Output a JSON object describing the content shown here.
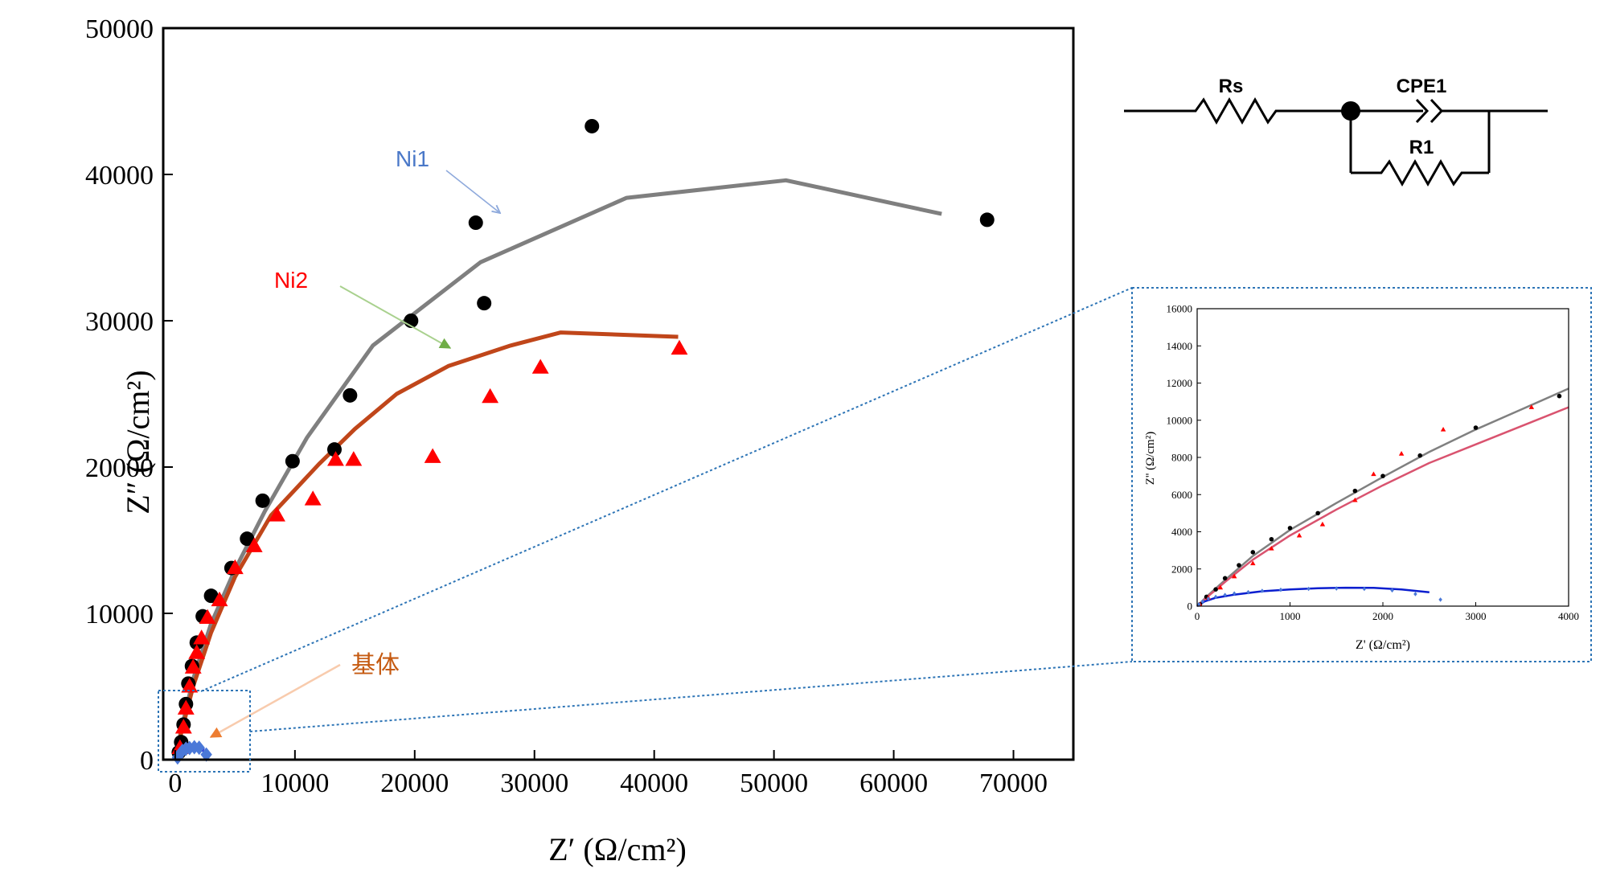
{
  "chart_data": [
    {
      "type": "scatter",
      "title": "",
      "xlabel": "Z′ (Ω/cm²)",
      "ylabel": "Z″ (Ω/cm²)",
      "xlim": [
        -1000,
        75000
      ],
      "ylim": [
        0,
        50000
      ],
      "xticks": [
        0,
        10000,
        20000,
        30000,
        40000,
        50000,
        60000,
        70000
      ],
      "xtick_labels": [
        "0",
        "10000",
        "20000",
        "30000",
        "40000",
        "50000",
        "60000",
        "70000"
      ],
      "yticks": [
        0,
        10000,
        20000,
        30000,
        40000,
        50000
      ],
      "ytick_labels": [
        "0",
        "10000",
        "20000",
        "30000",
        "40000",
        "50000"
      ],
      "series": [
        {
          "name": "Ni1",
          "color": "#000000",
          "marker": "circle",
          "points": [
            [
              300,
              500
            ],
            [
              500,
              1200
            ],
            [
              700,
              2400
            ],
            [
              900,
              3800
            ],
            [
              1100,
              5200
            ],
            [
              1400,
              6400
            ],
            [
              1800,
              8000
            ],
            [
              2300,
              9800
            ],
            [
              3000,
              11200
            ],
            [
              4700,
              13100
            ],
            [
              6000,
              15100
            ],
            [
              7300,
              17700
            ],
            [
              9800,
              20400
            ],
            [
              13300,
              21200
            ],
            [
              14600,
              24900
            ],
            [
              19700,
              30000
            ],
            [
              25100,
              36700
            ],
            [
              25800,
              31200
            ],
            [
              34800,
              43300
            ],
            [
              67800,
              36900
            ]
          ]
        },
        {
          "name": "Ni2",
          "color": "#ff0000",
          "marker": "triangle",
          "points": [
            [
              400,
              800
            ],
            [
              700,
              2200
            ],
            [
              900,
              3500
            ],
            [
              1200,
              5000
            ],
            [
              1500,
              6300
            ],
            [
              1800,
              7300
            ],
            [
              2200,
              8300
            ],
            [
              2700,
              9700
            ],
            [
              3700,
              10900
            ],
            [
              5000,
              13100
            ],
            [
              6600,
              14600
            ],
            [
              8500,
              16700
            ],
            [
              11500,
              17800
            ],
            [
              13400,
              20500
            ],
            [
              14900,
              20500
            ],
            [
              21500,
              20700
            ],
            [
              26300,
              24800
            ],
            [
              30500,
              26800
            ],
            [
              42100,
              28100
            ]
          ]
        },
        {
          "name": "基体",
          "color": "#4a78d8",
          "marker": "diamond",
          "points": [
            [
              200,
              150
            ],
            [
              400,
              400
            ],
            [
              600,
              600
            ],
            [
              900,
              750
            ],
            [
              1200,
              800
            ],
            [
              1600,
              850
            ],
            [
              2000,
              820
            ],
            [
              2600,
              350
            ]
          ]
        }
      ],
      "fit_lines": [
        {
          "name": "Ni1-fit",
          "color": "#7f7f7f",
          "points": [
            [
              0,
              0
            ],
            [
              500,
              2000
            ],
            [
              1500,
              5500
            ],
            [
              3000,
              9300
            ],
            [
              5000,
              13000
            ],
            [
              7500,
              17000
            ],
            [
              11000,
              22000
            ],
            [
              16500,
              28300
            ],
            [
              25500,
              34000
            ],
            [
              37700,
              38400
            ],
            [
              51000,
              39600
            ],
            [
              64000,
              37300
            ]
          ]
        },
        {
          "name": "Ni2-fit",
          "color": "#c0461a",
          "points": [
            [
              0,
              0
            ],
            [
              500,
              1800
            ],
            [
              1500,
              5000
            ],
            [
              3000,
              8700
            ],
            [
              5000,
              12500
            ],
            [
              8000,
              16700
            ],
            [
              12000,
              20200
            ],
            [
              15000,
              22600
            ],
            [
              18500,
              25000
            ],
            [
              22800,
              26900
            ],
            [
              28000,
              28300
            ],
            [
              32200,
              29200
            ],
            [
              42000,
              28900
            ]
          ]
        },
        {
          "name": "基体-fit",
          "color": "#1f1fd8",
          "points": [
            [
              0,
              0
            ],
            [
              150,
              350
            ],
            [
              400,
              600
            ],
            [
              800,
              780
            ],
            [
              1200,
              850
            ],
            [
              1600,
              870
            ],
            [
              2000,
              800
            ],
            [
              2400,
              650
            ]
          ]
        }
      ],
      "annotations": [
        {
          "text": "Ni1",
          "color": "#4a78c8",
          "target": [
            27300,
            37800
          ],
          "arrow_color": "#8faadc"
        },
        {
          "text": "Ni2",
          "color": "#ff0000",
          "target": [
            24000,
            28000
          ],
          "arrow_color": "#70ad47"
        },
        {
          "text": "基体",
          "color": "#c55a11",
          "target": [
            3500,
            1400
          ],
          "arrow_color": "#f4b183"
        }
      ],
      "zoom_region": {
        "x": [
          -500,
          7000
        ],
        "y": [
          -800,
          4600
        ]
      }
    },
    {
      "type": "scatter",
      "title": "",
      "xlabel": "Z' (Ω/cm²)",
      "ylabel": "Z'' (Ω/cm²)",
      "xlim": [
        0,
        4000
      ],
      "ylim": [
        0,
        16000
      ],
      "xticks": [
        0,
        1000,
        2000,
        3000,
        4000
      ],
      "xtick_labels": [
        "0",
        "1000",
        "2000",
        "3000",
        "4000"
      ],
      "yticks": [
        0,
        2000,
        4000,
        6000,
        8000,
        10000,
        12000,
        14000,
        16000
      ],
      "ytick_labels": [
        "0",
        "2000",
        "4000",
        "6000",
        "8000",
        "10000",
        "12000",
        "14000",
        "16000"
      ],
      "series": [
        {
          "name": "Ni1",
          "color": "#000000",
          "marker": "circle",
          "points": [
            [
              30,
              100
            ],
            [
              100,
              500
            ],
            [
              200,
              900
            ],
            [
              300,
              1500
            ],
            [
              450,
              2200
            ],
            [
              600,
              2900
            ],
            [
              800,
              3600
            ],
            [
              1000,
              4200
            ],
            [
              1300,
              5000
            ],
            [
              1700,
              6200
            ],
            [
              2000,
              7000
            ],
            [
              2400,
              8100
            ],
            [
              3000,
              9600
            ],
            [
              3900,
              11300
            ]
          ]
        },
        {
          "name": "Ni2",
          "color": "#ff0000",
          "marker": "triangle",
          "points": [
            [
              30,
              80
            ],
            [
              120,
              450
            ],
            [
              250,
              1000
            ],
            [
              400,
              1600
            ],
            [
              600,
              2300
            ],
            [
              800,
              3100
            ],
            [
              1100,
              3800
            ],
            [
              1350,
              4400
            ],
            [
              1700,
              5700
            ],
            [
              1900,
              7100
            ],
            [
              2200,
              8200
            ],
            [
              2650,
              9500
            ],
            [
              3600,
              10700
            ]
          ]
        },
        {
          "name": "基体",
          "color": "#4a78d8",
          "marker": "diamond",
          "points": [
            [
              20,
              100
            ],
            [
              60,
              250
            ],
            [
              120,
              400
            ],
            [
              200,
              500
            ],
            [
              300,
              600
            ],
            [
              400,
              680
            ],
            [
              550,
              750
            ],
            [
              700,
              820
            ],
            [
              900,
              880
            ],
            [
              1200,
              930
            ],
            [
              1500,
              950
            ],
            [
              1800,
              930
            ],
            [
              2100,
              850
            ],
            [
              2350,
              650
            ],
            [
              2620,
              350
            ]
          ]
        }
      ],
      "fit_lines": [
        {
          "name": "Ni1-fit",
          "color": "#808080",
          "points": [
            [
              0,
              0
            ],
            [
              100,
              500
            ],
            [
              300,
              1400
            ],
            [
              600,
              2700
            ],
            [
              1000,
              4100
            ],
            [
              1500,
              5550
            ],
            [
              2000,
              6950
            ],
            [
              2500,
              8300
            ],
            [
              3000,
              9500
            ],
            [
              3500,
              10600
            ],
            [
              4000,
              11700
            ]
          ]
        },
        {
          "name": "Ni2-fit",
          "color": "#d9536f",
          "points": [
            [
              0,
              0
            ],
            [
              100,
              450
            ],
            [
              300,
              1300
            ],
            [
              600,
              2500
            ],
            [
              1000,
              3800
            ],
            [
              1500,
              5200
            ],
            [
              2000,
              6500
            ],
            [
              2500,
              7700
            ],
            [
              3000,
              8700
            ],
            [
              3500,
              9700
            ],
            [
              4000,
              10700
            ]
          ]
        },
        {
          "name": "基体-fit",
          "color": "#0a1ecf",
          "points": [
            [
              0,
              0
            ],
            [
              80,
              250
            ],
            [
              200,
              450
            ],
            [
              400,
              620
            ],
            [
              700,
              800
            ],
            [
              1000,
              900
            ],
            [
              1300,
              960
            ],
            [
              1600,
              990
            ],
            [
              1900,
              980
            ],
            [
              2200,
              900
            ],
            [
              2500,
              750
            ]
          ]
        }
      ]
    }
  ],
  "circuit": {
    "rs_label": "Rs",
    "cpe_label": "CPE1",
    "r1_label": "R1"
  }
}
